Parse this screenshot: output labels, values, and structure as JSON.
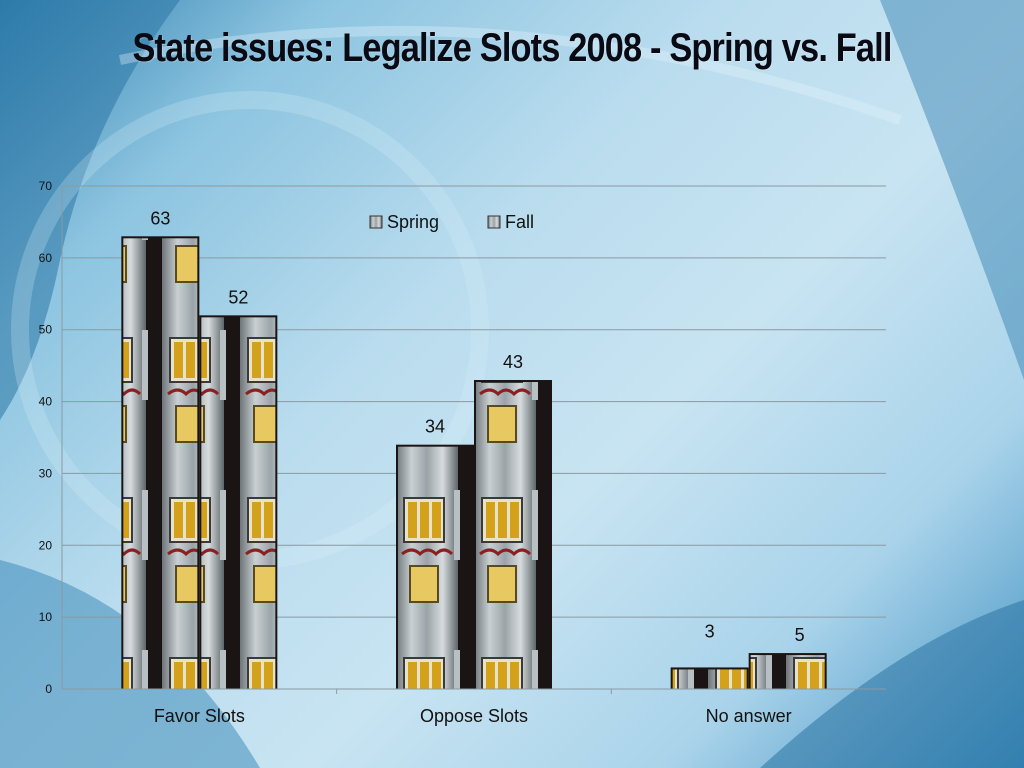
{
  "slide": {
    "title": "State issues: Legalize Slots 2008 - Spring vs. Fall"
  },
  "colors": {
    "background": "#b9dcee",
    "gridline": "#8a9aa3",
    "slot_metal": "#9aa4a8",
    "slot_dark": "#1a1414"
  },
  "chart_data": {
    "type": "bar",
    "title": "",
    "xlabel": "",
    "ylabel": "",
    "ylim": [
      0,
      70
    ],
    "yticks": [
      0,
      10,
      20,
      30,
      40,
      50,
      60,
      70
    ],
    "grid": true,
    "legend_position": "top-center",
    "bar_fill": "slot-machine-image",
    "categories": [
      "Favor Slots",
      "Oppose Slots",
      "No answer"
    ],
    "series": [
      {
        "name": "Spring",
        "values": [
          63,
          34,
          3
        ]
      },
      {
        "name": "Fall",
        "values": [
          52,
          43,
          5
        ]
      }
    ]
  }
}
